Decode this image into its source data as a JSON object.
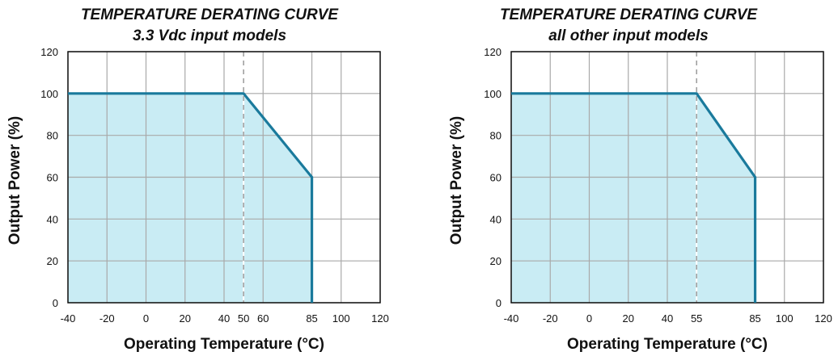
{
  "chart_data": [
    {
      "type": "area",
      "title": [
        "TEMPERATURE DERATING CURVE",
        "3.3 Vdc input models"
      ],
      "xlabel": "Operating Temperature (°C)",
      "ylabel": "Output Power (%)",
      "xlim": [
        -40,
        120
      ],
      "ylim": [
        0,
        120
      ],
      "x_ticks": [
        -40,
        -20,
        0,
        20,
        40,
        50,
        60,
        85,
        100,
        120
      ],
      "y_ticks": [
        0,
        20,
        40,
        60,
        80,
        100,
        120
      ],
      "grid": true,
      "dashed_marker_x": 50,
      "series": [
        {
          "x": [
            -40,
            50,
            85,
            85
          ],
          "y": [
            100,
            100,
            60,
            0
          ]
        }
      ],
      "line_color": "#1a7a9c",
      "fill_color": "#c9ecf4"
    },
    {
      "type": "area",
      "title": [
        "TEMPERATURE DERATING CURVE",
        "all other input models"
      ],
      "xlabel": "Operating Temperature (°C)",
      "ylabel": "Output Power (%)",
      "xlim": [
        -40,
        120
      ],
      "ylim": [
        0,
        120
      ],
      "x_ticks": [
        -40,
        -20,
        0,
        20,
        40,
        55,
        85,
        100,
        120
      ],
      "y_ticks": [
        0,
        20,
        40,
        60,
        80,
        100,
        120
      ],
      "grid": true,
      "dashed_marker_x": 55,
      "series": [
        {
          "x": [
            -40,
            55,
            85,
            85
          ],
          "y": [
            100,
            100,
            60,
            0
          ]
        }
      ],
      "line_color": "#1a7a9c",
      "fill_color": "#c9ecf4"
    }
  ]
}
